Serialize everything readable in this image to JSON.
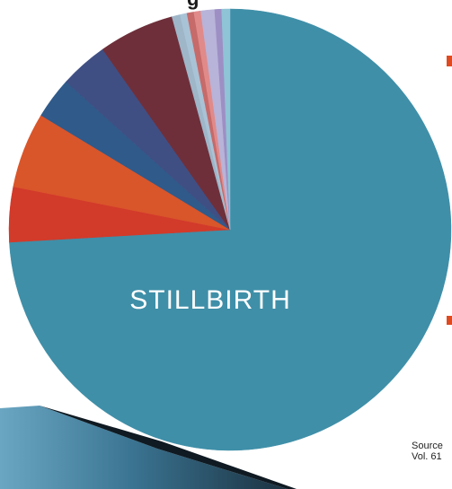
{
  "chart_data": {
    "type": "pie",
    "title": "",
    "slices": [
      {
        "label": "STILLBIRTH",
        "value": 73.5,
        "color": "#3f8fa8"
      },
      {
        "label": "",
        "value": 4.0,
        "color": "#d23a2a"
      },
      {
        "label": "",
        "value": 5.5,
        "color": "#d9552a"
      },
      {
        "label": "",
        "value": 3.0,
        "color": "#2f5a8a"
      },
      {
        "label": "",
        "value": 3.5,
        "color": "#3f4f84"
      },
      {
        "label": "",
        "value": 5.5,
        "color": "#6e2f3a"
      },
      {
        "label": "",
        "value": 0.6,
        "color": "#9fb6c8"
      },
      {
        "label": "",
        "value": 0.5,
        "color": "#a9c3d6"
      },
      {
        "label": "",
        "value": 0.5,
        "color": "#c66a6a"
      },
      {
        "label": "",
        "value": 0.5,
        "color": "#e08a8a"
      },
      {
        "label": "",
        "value": 1.0,
        "color": "#b8b3d8"
      },
      {
        "label": "",
        "value": 0.5,
        "color": "#9d8fc4"
      },
      {
        "label": "",
        "value": 0.6,
        "color": "#8ec4d6"
      }
    ],
    "start_angle_deg": 0,
    "direction": "clockwise",
    "visible_labels": [
      "STILLBIRTH"
    ]
  },
  "page": {
    "top_text_partial": "g",
    "source_line1": "Source",
    "source_line2": "Vol. 61"
  },
  "colors": {
    "background": "#ffffff",
    "banner_dark": "#1b3140",
    "banner_light": "#5f98b4",
    "accent": "#e04a20"
  }
}
